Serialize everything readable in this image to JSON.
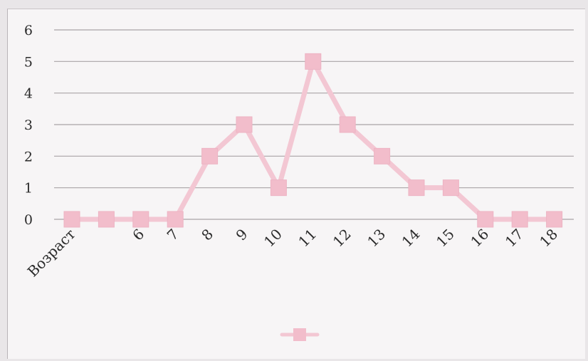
{
  "chart_data": {
    "type": "line",
    "categories": [
      "Возраст",
      "",
      "6",
      "7",
      "8",
      "9",
      "10",
      "11",
      "12",
      "13",
      "14",
      "15",
      "16",
      "17",
      "18"
    ],
    "series": [
      {
        "values": [
          0,
          0,
          0,
          0,
          2,
          3,
          1,
          5,
          3,
          2,
          1,
          1,
          0,
          0,
          0
        ]
      }
    ],
    "y_ticks": [
      "0",
      "1",
      "2",
      "3",
      "4",
      "5",
      "6"
    ],
    "ylim": [
      0,
      6
    ],
    "grid": true,
    "legend_position": "bottom",
    "colors": {
      "line": "#f3c7d3",
      "marker": "#f2bdcb",
      "grid": "#a9a4a6",
      "text": "#2b2b2b"
    }
  }
}
